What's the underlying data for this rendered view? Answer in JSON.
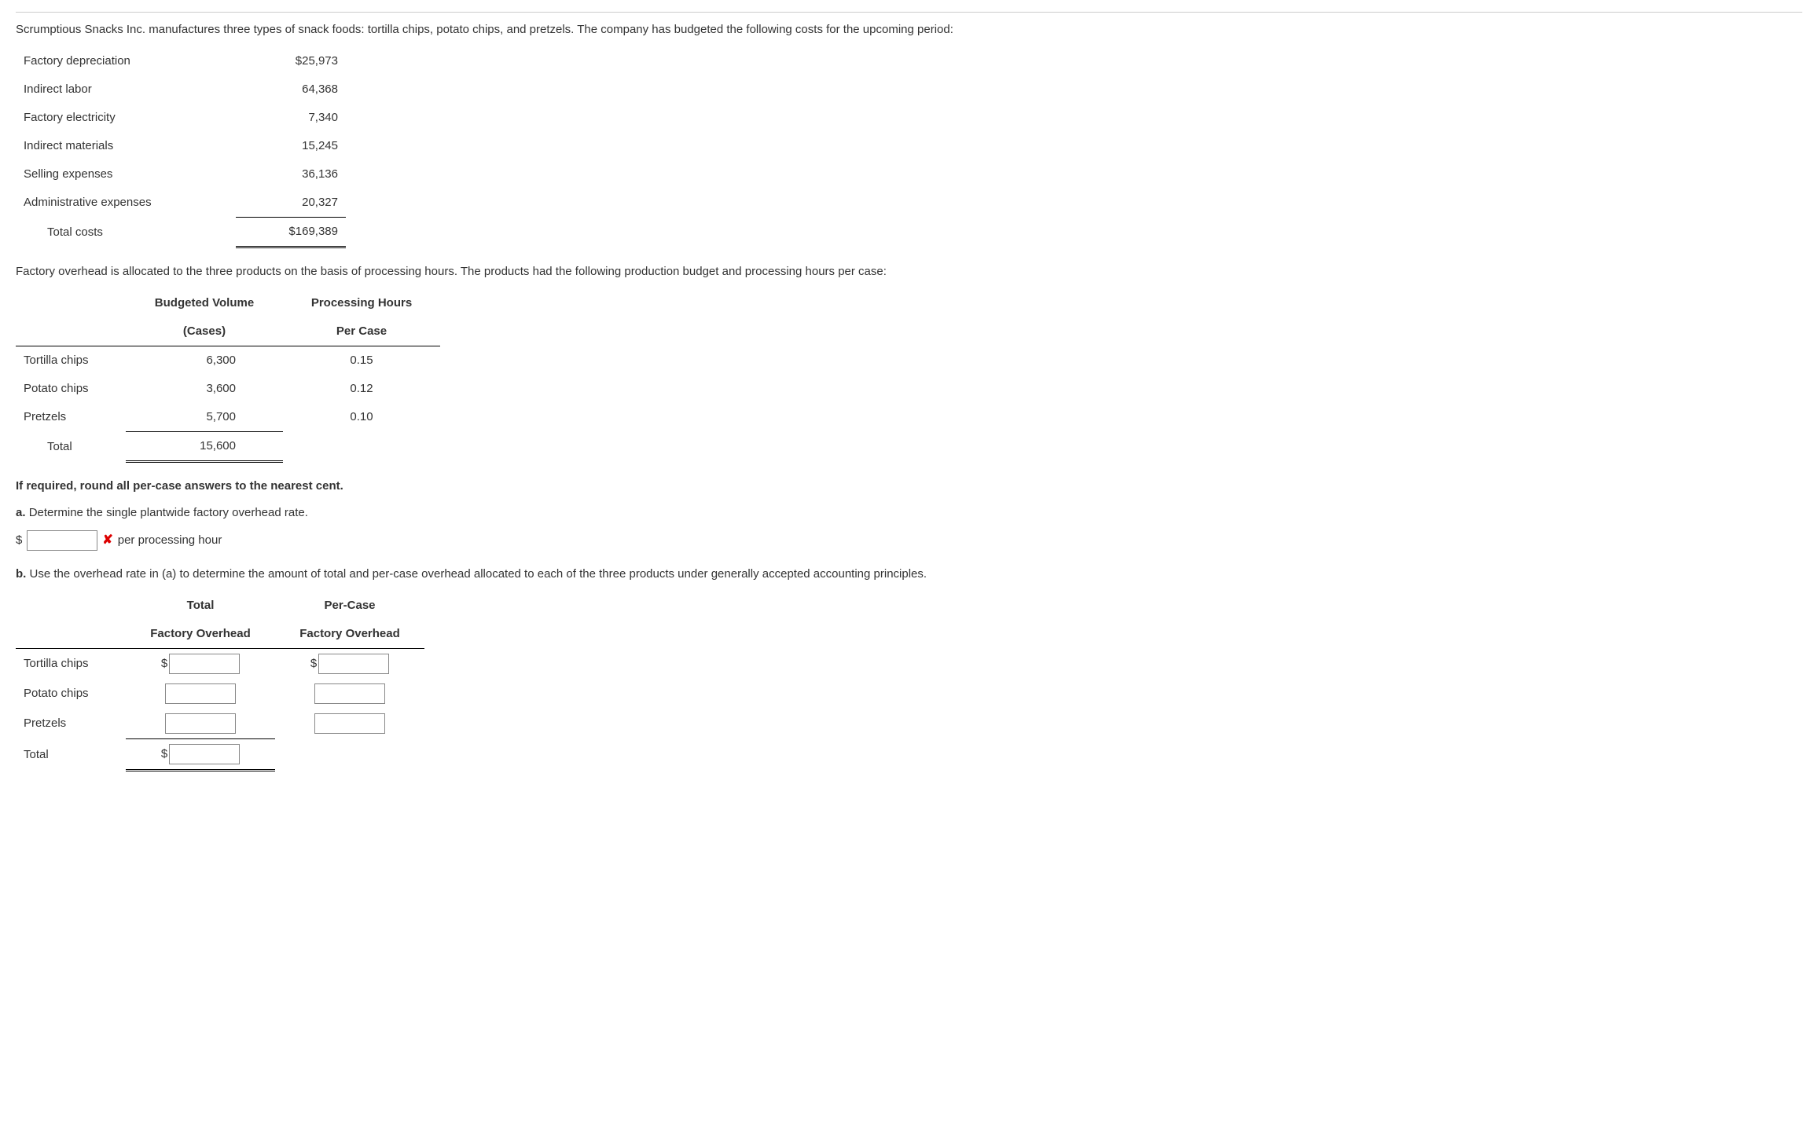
{
  "intro": "Scrumptious Snacks Inc. manufactures three types of snack foods: tortilla chips, potato chips, and pretzels. The company has budgeted the following costs for the upcoming period:",
  "costs": {
    "rows": [
      {
        "label": "Factory depreciation",
        "value": "$25,973"
      },
      {
        "label": "Indirect labor",
        "value": "64,368"
      },
      {
        "label": "Factory electricity",
        "value": "7,340"
      },
      {
        "label": "Indirect materials",
        "value": "15,245"
      },
      {
        "label": "Selling expenses",
        "value": "36,136"
      },
      {
        "label": "Administrative expenses",
        "value": "20,327"
      }
    ],
    "total_label": "Total costs",
    "total_value": "$169,389"
  },
  "overhead_para": "Factory overhead is allocated to the three products on the basis of processing hours. The products had the following production budget and processing hours per case:",
  "budget": {
    "header1_l1": "Budgeted Volume",
    "header1_l2": "(Cases)",
    "header2_l1": "Processing Hours",
    "header2_l2": "Per Case",
    "rows": [
      {
        "label": "Tortilla chips",
        "volume": "6,300",
        "hours": "0.15"
      },
      {
        "label": "Potato chips",
        "volume": "3,600",
        "hours": "0.12"
      },
      {
        "label": "Pretzels",
        "volume": "5,700",
        "hours": "0.10"
      }
    ],
    "total_label": "Total",
    "total_volume": "15,600"
  },
  "round_note": "If required, round all per-case answers to the nearest cent.",
  "q_a": {
    "label": "a.",
    "text": "Determine the single plantwide factory overhead rate.",
    "prefix": "$",
    "suffix": "per processing hour",
    "x_mark": "✘"
  },
  "q_b": {
    "label": "b.",
    "text": "Use the overhead rate in (a) to determine the amount of total and per-case overhead allocated to each of the three products under generally accepted accounting principles.",
    "header1_l1": "Total",
    "header1_l2": "Factory Overhead",
    "header2_l1": "Per-Case",
    "header2_l2": "Factory Overhead",
    "rows": [
      {
        "label": "Tortilla chips"
      },
      {
        "label": "Potato chips"
      },
      {
        "label": "Pretzels"
      }
    ],
    "total_label": "Total"
  }
}
